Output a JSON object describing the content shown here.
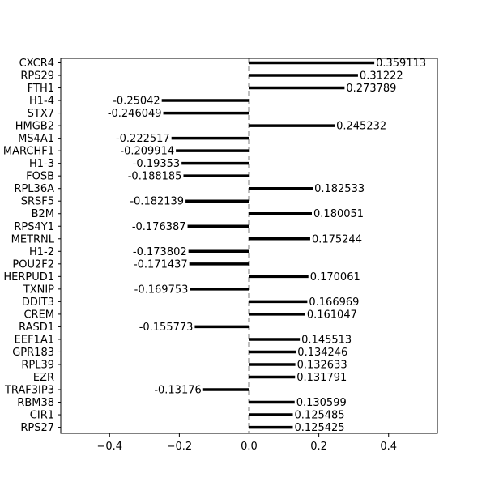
{
  "chart_data": {
    "type": "bar",
    "orientation": "horizontal",
    "title": "",
    "xlabel": "",
    "ylabel": "",
    "xlim": [
      -0.54,
      0.54
    ],
    "xticks": [
      -0.4,
      -0.2,
      0.0,
      0.2,
      0.4
    ],
    "xtick_labels": [
      "−0.4",
      "−0.2",
      "0.0",
      "0.2",
      "0.4"
    ],
    "grid": false,
    "zero_line": "dashed",
    "bar_color": "#000000",
    "categories": [
      "CXCR4",
      "RPS29",
      "FTH1",
      "H1-4",
      "STX7",
      "HMGB2",
      "MS4A1",
      "MARCHF1",
      "H1-3",
      "FOSB",
      "RPL36A",
      "SRSF5",
      "B2M",
      "RPS4Y1",
      "METRNL",
      "H1-2",
      "POU2F2",
      "HERPUD1",
      "TXNIP",
      "DDIT3",
      "CREM",
      "RASD1",
      "EEF1A1",
      "GPR183",
      "RPL39",
      "EZR",
      "TRAF3IP3",
      "RBM38",
      "CIR1",
      "RPS27"
    ],
    "values": [
      0.359113,
      0.31222,
      0.273789,
      -0.25042,
      -0.246049,
      0.245232,
      -0.222517,
      -0.209914,
      -0.19353,
      -0.188185,
      0.182533,
      -0.182139,
      0.180051,
      -0.176387,
      0.175244,
      -0.173802,
      -0.171437,
      0.170061,
      -0.169753,
      0.166969,
      0.161047,
      -0.155773,
      0.145513,
      0.134246,
      0.132633,
      0.131791,
      -0.13176,
      0.130599,
      0.125485,
      0.125425
    ],
    "value_labels": [
      "0.359113",
      "0.31222",
      "0.273789",
      "-0.25042",
      "-0.246049",
      "0.245232",
      "-0.222517",
      "-0.209914",
      "-0.19353",
      "-0.188185",
      "0.182533",
      "-0.182139",
      "0.180051",
      "-0.176387",
      "0.175244",
      "-0.173802",
      "-0.171437",
      "0.170061",
      "-0.169753",
      "0.166969",
      "0.161047",
      "-0.155773",
      "0.145513",
      "0.134246",
      "0.132633",
      "0.131791",
      "-0.13176",
      "0.130599",
      "0.125485",
      "0.125425"
    ]
  }
}
